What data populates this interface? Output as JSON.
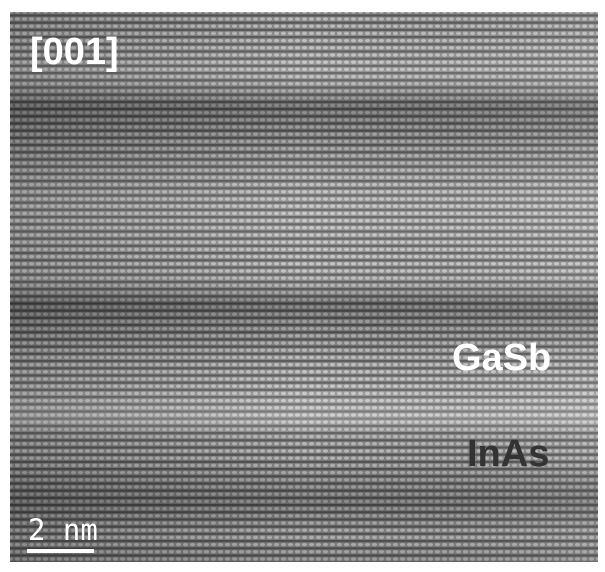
{
  "labels": {
    "orientation": "[001]",
    "layer_top": "GaSb",
    "layer_bottom": "InAs",
    "scale_bar": "2 nm"
  }
}
